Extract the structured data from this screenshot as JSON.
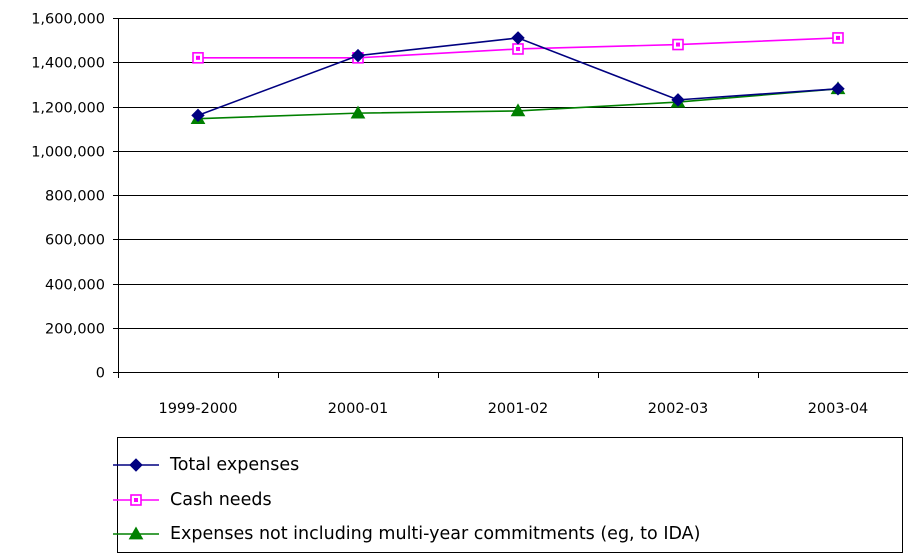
{
  "chart_data": {
    "type": "line",
    "title": "",
    "xlabel": "",
    "ylabel": "",
    "categories": [
      "1999-2000",
      "2000-01",
      "2001-02",
      "2002-03",
      "2003-04"
    ],
    "ylim": [
      0,
      1600000
    ],
    "yticks": [
      0,
      200000,
      400000,
      600000,
      800000,
      1000000,
      1200000,
      1400000,
      1600000
    ],
    "ytick_labels": [
      "0",
      "200,000",
      "400,000",
      "600,000",
      "800,000",
      "1,000,000",
      "1,200,000",
      "1,400,000",
      "1,600,000"
    ],
    "grid": "horizontal",
    "legend_position": "bottom",
    "series": [
      {
        "name": "Total expenses",
        "color": "#000080",
        "marker": "diamond",
        "values": [
          1160000,
          1430000,
          1510000,
          1230000,
          1280000
        ]
      },
      {
        "name": "Cash needs",
        "color": "#FF00FF",
        "marker": "square",
        "values": [
          1420000,
          1420000,
          1460000,
          1480000,
          1510000
        ]
      },
      {
        "name": "Expenses not including multi-year commitments (eg, to IDA)",
        "color": "#008000",
        "marker": "triangle",
        "values": [
          1145000,
          1170000,
          1180000,
          1220000,
          1280000
        ]
      }
    ]
  }
}
